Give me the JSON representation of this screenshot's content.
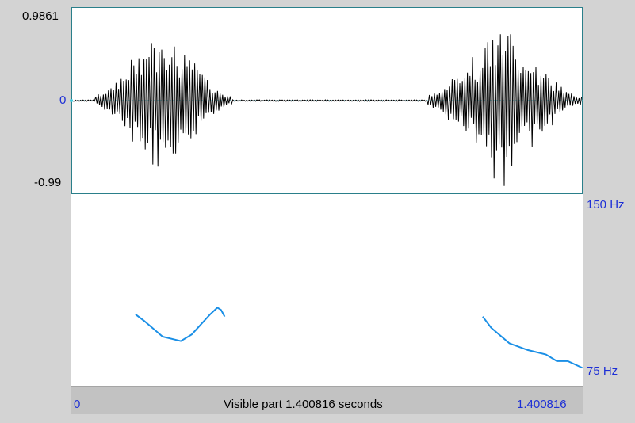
{
  "waveform": {
    "amp_max_label": "0.9861",
    "amp_zero_label": "0",
    "amp_min_label": "-0.99"
  },
  "pitch": {
    "top_label": "150 Hz",
    "bottom_label": "75 Hz",
    "contours": [
      {
        "name": "pitch-contour-1",
        "time": [
          0.176,
          0.2,
          0.25,
          0.3,
          0.33,
          0.38,
          0.4,
          0.41,
          0.42
        ],
        "hz": [
          101,
          98,
          91,
          89,
          92,
          101,
          104,
          103,
          100
        ]
      },
      {
        "name": "pitch-contour-2",
        "time": [
          1.127,
          1.15,
          1.2,
          1.25,
          1.3,
          1.33,
          1.36,
          1.4
        ],
        "hz": [
          100,
          95,
          88,
          85,
          83,
          80,
          80,
          77
        ]
      }
    ]
  },
  "time_bar": {
    "start_label": "0",
    "center_label": "Visible part 1.400816 seconds",
    "end_label": "1.400816"
  },
  "colors": {
    "waveform": "#000000",
    "pitch_curve": "#1a8fe6",
    "axis_label": "#1d2fd6",
    "zero_line": "#3cc8dc"
  }
}
